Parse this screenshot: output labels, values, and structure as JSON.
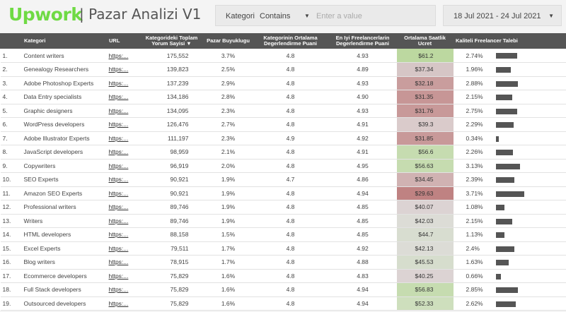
{
  "header": {
    "logo": "Upwork",
    "title": "| Pazar Analizi V1",
    "filter": {
      "label": "Kategori",
      "operator": "Contains",
      "placeholder": "Enter a value"
    },
    "date_range": "18 Jul 2021 - 24 Jul 2021"
  },
  "table": {
    "columns": [
      "",
      "Kategori",
      "URL",
      "Kategorideki Toplam Yorum Sayisi ▼",
      "Pazar Buyuklugu",
      "Kategorinin Ortalama Degerlendirme Puani",
      "En Iyi Freelancerlarin Degerlendirme Puani",
      "Ortalama Saatlik Ucret",
      "Kaliteli Freelancer Talebi"
    ],
    "rows": [
      {
        "n": "1.",
        "cat": "Content writers",
        "url": "https:...",
        "reviews": "175,552",
        "market": "3.7%",
        "avg": "4.8",
        "top": "4.93",
        "rate": "$61.2",
        "rate_color": "#bcd8a0",
        "demand": "2.74%",
        "demand_value": 2.74
      },
      {
        "n": "2.",
        "cat": "Genealogy Researchers",
        "url": "https:...",
        "reviews": "139,823",
        "market": "2.5%",
        "avg": "4.8",
        "top": "4.89",
        "rate": "$37.34",
        "rate_color": "#d6c6c6",
        "demand": "1.96%",
        "demand_value": 1.96
      },
      {
        "n": "3.",
        "cat": "Adobe Photoshop Experts",
        "url": "https:...",
        "reviews": "137,239",
        "market": "2.9%",
        "avg": "4.8",
        "top": "4.93",
        "rate": "$32.18",
        "rate_color": "#c99d9d",
        "demand": "2.88%",
        "demand_value": 2.88
      },
      {
        "n": "4.",
        "cat": "Data Entry specialists",
        "url": "https:...",
        "reviews": "134,186",
        "market": "2.8%",
        "avg": "4.8",
        "top": "4.90",
        "rate": "$31.35",
        "rate_color": "#c79696",
        "demand": "2.15%",
        "demand_value": 2.15
      },
      {
        "n": "5.",
        "cat": "Graphic designers",
        "url": "https:...",
        "reviews": "134,095",
        "market": "2.3%",
        "avg": "4.8",
        "top": "4.93",
        "rate": "$31.76",
        "rate_color": "#c89999",
        "demand": "2.75%",
        "demand_value": 2.75
      },
      {
        "n": "6.",
        "cat": "WordPress developers",
        "url": "https:...",
        "reviews": "126,476",
        "market": "2.7%",
        "avg": "4.8",
        "top": "4.91",
        "rate": "$39.3",
        "rate_color": "#dacbcb",
        "demand": "2.29%",
        "demand_value": 2.29
      },
      {
        "n": "7.",
        "cat": "Adobe Illustrator Experts",
        "url": "https:...",
        "reviews": "111,197",
        "market": "2.3%",
        "avg": "4.9",
        "top": "4.92",
        "rate": "$31.85",
        "rate_color": "#c89999",
        "demand": "0.34%",
        "demand_value": 0.34
      },
      {
        "n": "8.",
        "cat": "JavaScript developers",
        "url": "https:...",
        "reviews": "98,959",
        "market": "2.1%",
        "avg": "4.8",
        "top": "4.91",
        "rate": "$56.6",
        "rate_color": "#c6dcb0",
        "demand": "2.26%",
        "demand_value": 2.26
      },
      {
        "n": "9.",
        "cat": "Copywriters",
        "url": "https:...",
        "reviews": "96,919",
        "market": "2.0%",
        "avg": "4.8",
        "top": "4.95",
        "rate": "$56.63",
        "rate_color": "#c6dcb0",
        "demand": "3.13%",
        "demand_value": 3.13
      },
      {
        "n": "10.",
        "cat": "SEO Experts",
        "url": "https:...",
        "reviews": "90,921",
        "market": "1.9%",
        "avg": "4.7",
        "top": "4.86",
        "rate": "$34.45",
        "rate_color": "#d0b2b2",
        "demand": "2.39%",
        "demand_value": 2.39
      },
      {
        "n": "11.",
        "cat": "Amazon SEO Experts",
        "url": "https:...",
        "reviews": "90,921",
        "market": "1.9%",
        "avg": "4.8",
        "top": "4.94",
        "rate": "$29.63",
        "rate_color": "#bf8282",
        "demand": "3.71%",
        "demand_value": 3.71
      },
      {
        "n": "12.",
        "cat": "Professional writers",
        "url": "https:...",
        "reviews": "89,746",
        "market": "1.9%",
        "avg": "4.8",
        "top": "4.85",
        "rate": "$40.07",
        "rate_color": "#dcd3d3",
        "demand": "1.08%",
        "demand_value": 1.08
      },
      {
        "n": "13.",
        "cat": "Writers",
        "url": "https:...",
        "reviews": "89,746",
        "market": "1.9%",
        "avg": "4.8",
        "top": "4.85",
        "rate": "$42.03",
        "rate_color": "#dcdcd6",
        "demand": "2.15%",
        "demand_value": 2.15
      },
      {
        "n": "14.",
        "cat": "HTML developers",
        "url": "https:...",
        "reviews": "88,158",
        "market": "1.5%",
        "avg": "4.8",
        "top": "4.85",
        "rate": "$44.7",
        "rate_color": "#d8ddd0",
        "demand": "1.13%",
        "demand_value": 1.13
      },
      {
        "n": "15.",
        "cat": "Excel Experts",
        "url": "https:...",
        "reviews": "79,511",
        "market": "1.7%",
        "avg": "4.8",
        "top": "4.92",
        "rate": "$42.13",
        "rate_color": "#dcdcd6",
        "demand": "2.4%",
        "demand_value": 2.4
      },
      {
        "n": "16.",
        "cat": "Blog writers",
        "url": "https:...",
        "reviews": "78,915",
        "market": "1.7%",
        "avg": "4.8",
        "top": "4.88",
        "rate": "$45.53",
        "rate_color": "#d6ddcd",
        "demand": "1.63%",
        "demand_value": 1.63
      },
      {
        "n": "17.",
        "cat": "Ecommerce developers",
        "url": "https:...",
        "reviews": "75,829",
        "market": "1.6%",
        "avg": "4.8",
        "top": "4.83",
        "rate": "$40.25",
        "rate_color": "#dcd3d3",
        "demand": "0.66%",
        "demand_value": 0.66
      },
      {
        "n": "18.",
        "cat": "Full Stack developers",
        "url": "https:...",
        "reviews": "75,829",
        "market": "1.6%",
        "avg": "4.8",
        "top": "4.94",
        "rate": "$56.83",
        "rate_color": "#c6dcb0",
        "demand": "2.85%",
        "demand_value": 2.85
      },
      {
        "n": "19.",
        "cat": "Outsourced developers",
        "url": "https:...",
        "reviews": "75,829",
        "market": "1.6%",
        "avg": "4.8",
        "top": "4.94",
        "rate": "$52.33",
        "rate_color": "#cedfbd",
        "demand": "2.62%",
        "demand_value": 2.62
      }
    ]
  }
}
